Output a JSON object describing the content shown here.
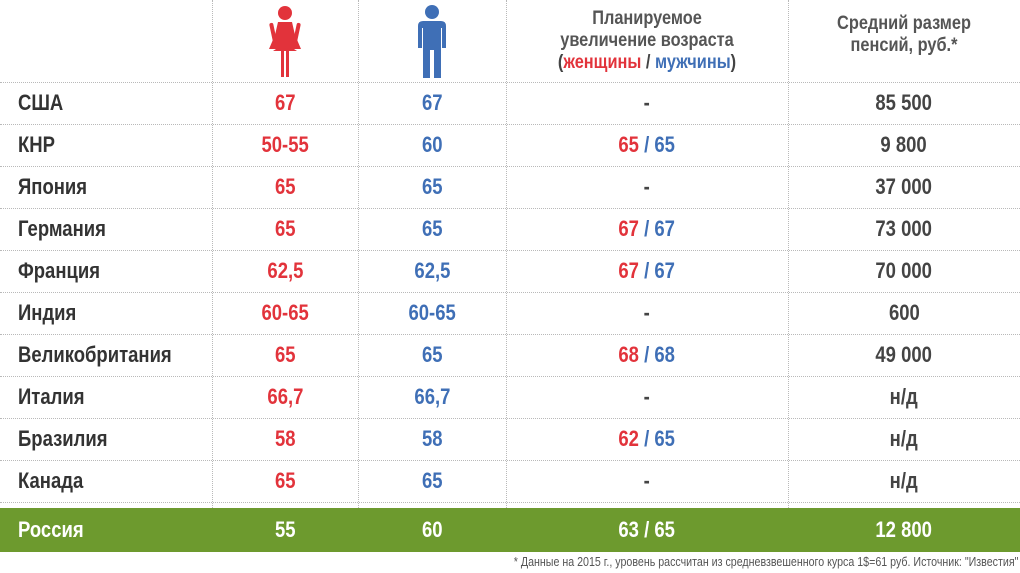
{
  "header": {
    "women_icon": "female-figure-icon",
    "men_icon": "male-figure-icon",
    "planned_line1": "Планируемое",
    "planned_line2": "увеличение возраста",
    "planned_open": "(",
    "planned_women": "женщины",
    "planned_slash": " / ",
    "planned_men": "мужчины",
    "planned_close": ")",
    "pension_line1": "Средний размер",
    "pension_line2": "пенсий, руб.*"
  },
  "colors": {
    "women": "#e2333b",
    "men": "#3f6fb6",
    "highlight_row": "#6d9a2e"
  },
  "rows": [
    {
      "country": "США",
      "women": "67",
      "men": "67",
      "plan_women": "",
      "plan_sep": "",
      "plan_men": "",
      "plan_dash": "-",
      "pension": "85 500"
    },
    {
      "country": "КНР",
      "women": "50-55",
      "men": "60",
      "plan_women": "65",
      "plan_sep": " / ",
      "plan_men": "65",
      "plan_dash": "",
      "pension": "9 800"
    },
    {
      "country": "Япония",
      "women": "65",
      "men": "65",
      "plan_women": "",
      "plan_sep": "",
      "plan_men": "",
      "plan_dash": "-",
      "pension": "37 000"
    },
    {
      "country": "Германия",
      "women": "65",
      "men": "65",
      "plan_women": "67",
      "plan_sep": " / ",
      "plan_men": "67",
      "plan_dash": "",
      "pension": "73 000"
    },
    {
      "country": "Франция",
      "women": "62,5",
      "men": "62,5",
      "plan_women": "67",
      "plan_sep": " / ",
      "plan_men": "67",
      "plan_dash": "",
      "pension": "70 000"
    },
    {
      "country": "Индия",
      "women": "60-65",
      "men": "60-65",
      "plan_women": "",
      "plan_sep": "",
      "plan_men": "",
      "plan_dash": "-",
      "pension": "600"
    },
    {
      "country": "Великобритания",
      "women": "65",
      "men": "65",
      "plan_women": "68",
      "plan_sep": " / ",
      "plan_men": "68",
      "plan_dash": "",
      "pension": "49 000"
    },
    {
      "country": "Италия",
      "women": "66,7",
      "men": "66,7",
      "plan_women": "",
      "plan_sep": "",
      "plan_men": "",
      "plan_dash": "-",
      "pension": "н/д"
    },
    {
      "country": "Бразилия",
      "women": "58",
      "men": "58",
      "plan_women": "62",
      "plan_sep": " / ",
      "plan_men": "65",
      "plan_dash": "",
      "pension": "н/д"
    },
    {
      "country": "Канада",
      "women": "65",
      "men": "65",
      "plan_women": "",
      "plan_sep": "",
      "plan_men": "",
      "plan_dash": "-",
      "pension": "н/д"
    }
  ],
  "russia": {
    "country": "Россия",
    "women": "55",
    "men": "60",
    "plan": "63 / 65",
    "pension": "12 800"
  },
  "footnote": "* Данные на 2015 г., уровень рассчитан из средневзвешенного курса 1$=61 руб. Источник: \"Известия\""
}
